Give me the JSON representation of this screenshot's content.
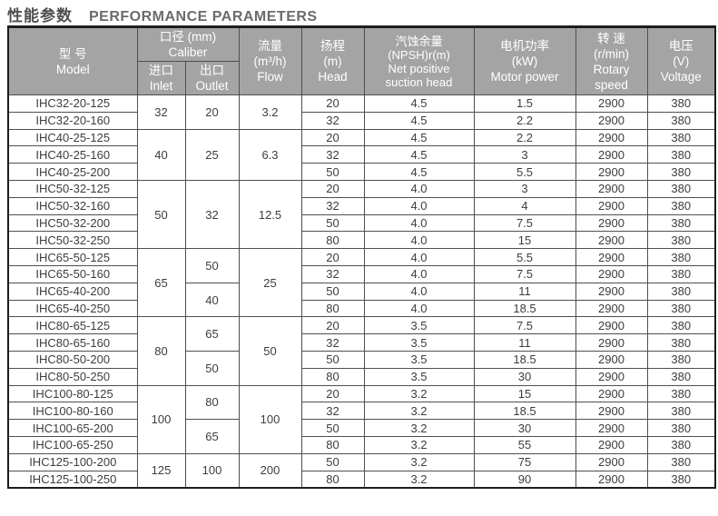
{
  "title": {
    "zh": "性能参数",
    "en": "PERFORMANCE PARAMETERS"
  },
  "colors": {
    "header_bg": "#a4a4a4",
    "header_text": "#ffffff",
    "border_dark": "#1d1d1d",
    "border_inner": "#4f4f4f",
    "text": "#3d3d3d",
    "title_zh": "#4f5052",
    "title_en": "#6a6b6d"
  },
  "table": {
    "headers": {
      "model": {
        "zh": "型 号",
        "en": "Model"
      },
      "caliber": {
        "zh": "口径 (mm)",
        "en": "Caliber"
      },
      "inlet": {
        "zh": "进口",
        "en": "Inlet"
      },
      "outlet": {
        "zh": "出口",
        "en": "Outlet"
      },
      "flow": {
        "zh": "流量",
        "unit": "(m³/h)",
        "en": "Flow"
      },
      "head": {
        "zh": "扬程",
        "unit": "(m)",
        "en": "Head"
      },
      "npsh": {
        "zh": "汽蚀余量",
        "unit": "(NPSH)r(m)",
        "en_line1": "Net positive",
        "en_line2": "suction head"
      },
      "power": {
        "zh": "电机功率",
        "unit": "(kW)",
        "en": "Motor power"
      },
      "speed": {
        "zh": "转 速",
        "unit": "(r/min)",
        "en": "Rotary speed"
      },
      "voltage": {
        "zh": "电压",
        "unit": "(V)",
        "en": "Voltage"
      }
    },
    "rows": [
      {
        "cells": [
          {
            "c": "model",
            "v": "IHC32-20-125"
          },
          {
            "c": "inlet",
            "v": "32",
            "rs": 2
          },
          {
            "c": "outlet",
            "v": "20",
            "rs": 2
          },
          {
            "c": "flow",
            "v": "3.2",
            "rs": 2
          },
          {
            "c": "head",
            "v": "20"
          },
          {
            "c": "npsh",
            "v": "4.5"
          },
          {
            "c": "power",
            "v": "1.5"
          },
          {
            "c": "speed",
            "v": "2900"
          },
          {
            "c": "voltage",
            "v": "380"
          }
        ]
      },
      {
        "cells": [
          {
            "c": "model",
            "v": "IHC32-20-160"
          },
          {
            "c": "head",
            "v": "32"
          },
          {
            "c": "npsh",
            "v": "4.5"
          },
          {
            "c": "power",
            "v": "2.2"
          },
          {
            "c": "speed",
            "v": "2900"
          },
          {
            "c": "voltage",
            "v": "380"
          }
        ]
      },
      {
        "cells": [
          {
            "c": "model",
            "v": "IHC40-25-125"
          },
          {
            "c": "inlet",
            "v": "40",
            "rs": 3
          },
          {
            "c": "outlet",
            "v": "25",
            "rs": 3
          },
          {
            "c": "flow",
            "v": "6.3",
            "rs": 3
          },
          {
            "c": "head",
            "v": "20"
          },
          {
            "c": "npsh",
            "v": "4.5"
          },
          {
            "c": "power",
            "v": "2.2"
          },
          {
            "c": "speed",
            "v": "2900"
          },
          {
            "c": "voltage",
            "v": "380"
          }
        ]
      },
      {
        "cells": [
          {
            "c": "model",
            "v": "IHC40-25-160"
          },
          {
            "c": "head",
            "v": "32"
          },
          {
            "c": "npsh",
            "v": "4.5"
          },
          {
            "c": "power",
            "v": "3"
          },
          {
            "c": "speed",
            "v": "2900"
          },
          {
            "c": "voltage",
            "v": "380"
          }
        ]
      },
      {
        "cells": [
          {
            "c": "model",
            "v": "IHC40-25-200"
          },
          {
            "c": "head",
            "v": "50"
          },
          {
            "c": "npsh",
            "v": "4.5"
          },
          {
            "c": "power",
            "v": "5.5"
          },
          {
            "c": "speed",
            "v": "2900"
          },
          {
            "c": "voltage",
            "v": "380"
          }
        ]
      },
      {
        "cells": [
          {
            "c": "model",
            "v": "IHC50-32-125"
          },
          {
            "c": "inlet",
            "v": "50",
            "rs": 4
          },
          {
            "c": "outlet",
            "v": "32",
            "rs": 4
          },
          {
            "c": "flow",
            "v": "12.5",
            "rs": 4
          },
          {
            "c": "head",
            "v": "20"
          },
          {
            "c": "npsh",
            "v": "4.0"
          },
          {
            "c": "power",
            "v": "3"
          },
          {
            "c": "speed",
            "v": "2900"
          },
          {
            "c": "voltage",
            "v": "380"
          }
        ]
      },
      {
        "cells": [
          {
            "c": "model",
            "v": "IHC50-32-160"
          },
          {
            "c": "head",
            "v": "32"
          },
          {
            "c": "npsh",
            "v": "4.0"
          },
          {
            "c": "power",
            "v": "4"
          },
          {
            "c": "speed",
            "v": "2900"
          },
          {
            "c": "voltage",
            "v": "380"
          }
        ]
      },
      {
        "cells": [
          {
            "c": "model",
            "v": "IHC50-32-200"
          },
          {
            "c": "head",
            "v": "50"
          },
          {
            "c": "npsh",
            "v": "4.0"
          },
          {
            "c": "power",
            "v": "7.5"
          },
          {
            "c": "speed",
            "v": "2900"
          },
          {
            "c": "voltage",
            "v": "380"
          }
        ]
      },
      {
        "cells": [
          {
            "c": "model",
            "v": "IHC50-32-250"
          },
          {
            "c": "head",
            "v": "80"
          },
          {
            "c": "npsh",
            "v": "4.0"
          },
          {
            "c": "power",
            "v": "15"
          },
          {
            "c": "speed",
            "v": "2900"
          },
          {
            "c": "voltage",
            "v": "380"
          }
        ]
      },
      {
        "cells": [
          {
            "c": "model",
            "v": "IHC65-50-125"
          },
          {
            "c": "inlet",
            "v": "65",
            "rs": 4
          },
          {
            "c": "outlet",
            "v": "50",
            "rs": 2
          },
          {
            "c": "flow",
            "v": "25",
            "rs": 4
          },
          {
            "c": "head",
            "v": "20"
          },
          {
            "c": "npsh",
            "v": "4.0"
          },
          {
            "c": "power",
            "v": "5.5"
          },
          {
            "c": "speed",
            "v": "2900"
          },
          {
            "c": "voltage",
            "v": "380"
          }
        ]
      },
      {
        "cells": [
          {
            "c": "model",
            "v": "IHC65-50-160"
          },
          {
            "c": "head",
            "v": "32"
          },
          {
            "c": "npsh",
            "v": "4.0"
          },
          {
            "c": "power",
            "v": "7.5"
          },
          {
            "c": "speed",
            "v": "2900"
          },
          {
            "c": "voltage",
            "v": "380"
          }
        ]
      },
      {
        "cells": [
          {
            "c": "model",
            "v": "IHC65-40-200"
          },
          {
            "c": "outlet",
            "v": "40",
            "rs": 2
          },
          {
            "c": "head",
            "v": "50"
          },
          {
            "c": "npsh",
            "v": "4.0"
          },
          {
            "c": "power",
            "v": "11"
          },
          {
            "c": "speed",
            "v": "2900"
          },
          {
            "c": "voltage",
            "v": "380"
          }
        ]
      },
      {
        "cells": [
          {
            "c": "model",
            "v": "IHC65-40-250"
          },
          {
            "c": "head",
            "v": "80"
          },
          {
            "c": "npsh",
            "v": "4.0"
          },
          {
            "c": "power",
            "v": "18.5"
          },
          {
            "c": "speed",
            "v": "2900"
          },
          {
            "c": "voltage",
            "v": "380"
          }
        ]
      },
      {
        "cells": [
          {
            "c": "model",
            "v": "IHC80-65-125"
          },
          {
            "c": "inlet",
            "v": "80",
            "rs": 4
          },
          {
            "c": "outlet",
            "v": "65",
            "rs": 2
          },
          {
            "c": "flow",
            "v": "50",
            "rs": 4
          },
          {
            "c": "head",
            "v": "20"
          },
          {
            "c": "npsh",
            "v": "3.5"
          },
          {
            "c": "power",
            "v": "7.5"
          },
          {
            "c": "speed",
            "v": "2900"
          },
          {
            "c": "voltage",
            "v": "380"
          }
        ]
      },
      {
        "cells": [
          {
            "c": "model",
            "v": "IHC80-65-160"
          },
          {
            "c": "head",
            "v": "32"
          },
          {
            "c": "npsh",
            "v": "3.5"
          },
          {
            "c": "power",
            "v": "11"
          },
          {
            "c": "speed",
            "v": "2900"
          },
          {
            "c": "voltage",
            "v": "380"
          }
        ]
      },
      {
        "cells": [
          {
            "c": "model",
            "v": "IHC80-50-200"
          },
          {
            "c": "outlet",
            "v": "50",
            "rs": 2
          },
          {
            "c": "head",
            "v": "50"
          },
          {
            "c": "npsh",
            "v": "3.5"
          },
          {
            "c": "power",
            "v": "18.5"
          },
          {
            "c": "speed",
            "v": "2900"
          },
          {
            "c": "voltage",
            "v": "380"
          }
        ]
      },
      {
        "cells": [
          {
            "c": "model",
            "v": "IHC80-50-250"
          },
          {
            "c": "head",
            "v": "80"
          },
          {
            "c": "npsh",
            "v": "3.5"
          },
          {
            "c": "power",
            "v": "30"
          },
          {
            "c": "speed",
            "v": "2900"
          },
          {
            "c": "voltage",
            "v": "380"
          }
        ]
      },
      {
        "cells": [
          {
            "c": "model",
            "v": "IHC100-80-125"
          },
          {
            "c": "inlet",
            "v": "100",
            "rs": 4
          },
          {
            "c": "outlet",
            "v": "80",
            "rs": 2
          },
          {
            "c": "flow",
            "v": "100",
            "rs": 4
          },
          {
            "c": "head",
            "v": "20"
          },
          {
            "c": "npsh",
            "v": "3.2"
          },
          {
            "c": "power",
            "v": "15"
          },
          {
            "c": "speed",
            "v": "2900"
          },
          {
            "c": "voltage",
            "v": "380"
          }
        ]
      },
      {
        "cells": [
          {
            "c": "model",
            "v": "IHC100-80-160"
          },
          {
            "c": "head",
            "v": "32"
          },
          {
            "c": "npsh",
            "v": "3.2"
          },
          {
            "c": "power",
            "v": "18.5"
          },
          {
            "c": "speed",
            "v": "2900"
          },
          {
            "c": "voltage",
            "v": "380"
          }
        ]
      },
      {
        "cells": [
          {
            "c": "model",
            "v": "IHC100-65-200"
          },
          {
            "c": "outlet",
            "v": "65",
            "rs": 2
          },
          {
            "c": "head",
            "v": "50"
          },
          {
            "c": "npsh",
            "v": "3.2"
          },
          {
            "c": "power",
            "v": "30"
          },
          {
            "c": "speed",
            "v": "2900"
          },
          {
            "c": "voltage",
            "v": "380"
          }
        ]
      },
      {
        "cells": [
          {
            "c": "model",
            "v": "IHC100-65-250"
          },
          {
            "c": "head",
            "v": "80"
          },
          {
            "c": "npsh",
            "v": "3.2"
          },
          {
            "c": "power",
            "v": "55"
          },
          {
            "c": "speed",
            "v": "2900"
          },
          {
            "c": "voltage",
            "v": "380"
          }
        ]
      },
      {
        "cells": [
          {
            "c": "model",
            "v": "IHC125-100-200"
          },
          {
            "c": "inlet",
            "v": "125",
            "rs": 2
          },
          {
            "c": "outlet",
            "v": "100",
            "rs": 2
          },
          {
            "c": "flow",
            "v": "200",
            "rs": 2
          },
          {
            "c": "head",
            "v": "50"
          },
          {
            "c": "npsh",
            "v": "3.2"
          },
          {
            "c": "power",
            "v": "75"
          },
          {
            "c": "speed",
            "v": "2900"
          },
          {
            "c": "voltage",
            "v": "380"
          }
        ]
      },
      {
        "cells": [
          {
            "c": "model",
            "v": "IHC125-100-250"
          },
          {
            "c": "head",
            "v": "80"
          },
          {
            "c": "npsh",
            "v": "3.2"
          },
          {
            "c": "power",
            "v": "90"
          },
          {
            "c": "speed",
            "v": "2900"
          },
          {
            "c": "voltage",
            "v": "380"
          }
        ]
      }
    ]
  }
}
